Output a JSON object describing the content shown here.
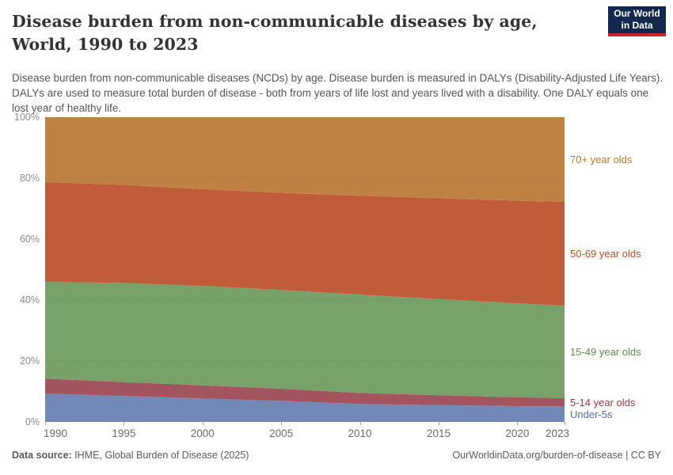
{
  "header": {
    "title": "Disease burden from non-communicable diseases by age, World, 1990 to 2023",
    "subtitle": "Disease burden from non-communicable diseases (NCDs) by age. Disease burden is measured in DALYs (Disability-Adjusted Life Years). DALYs are used to measure total burden of disease - both from years of life lost and years lived with a disability. One DALY equals one lost year of healthy life.",
    "logo": {
      "line1": "Our World",
      "line2": "in Data",
      "bg_color": "#12294d",
      "accent_color": "#cc2128"
    }
  },
  "chart_data": {
    "type": "area",
    "stacking": "percent",
    "title": "Disease burden from non-communicable diseases by age",
    "entity": "World",
    "x": [
      1990,
      1995,
      2000,
      2005,
      2010,
      2015,
      2020,
      2023
    ],
    "xlim": [
      1990,
      2023
    ],
    "ylim": [
      0,
      100
    ],
    "grid": "dashed-horizontal",
    "legend_position": "right-edge-labels",
    "yticks": [
      0,
      20,
      40,
      60,
      80,
      100
    ],
    "ytick_labels": [
      "0%",
      "20%",
      "40%",
      "60%",
      "80%",
      "100%"
    ],
    "xtick_labels": [
      "1990",
      "1995",
      "2000",
      "2005",
      "2010",
      "2015",
      "2020",
      "2023"
    ],
    "series": [
      {
        "name": "Under-5s",
        "color": "#7289b7",
        "label_color": "#4c6fa8",
        "values": [
          9.3,
          8.5,
          7.7,
          6.9,
          5.9,
          5.5,
          5.2,
          5.1
        ]
      },
      {
        "name": "5-14 year olds",
        "color": "#a2555e",
        "label_color": "#9c3a44",
        "values": [
          4.9,
          4.6,
          4.3,
          4.0,
          3.6,
          3.3,
          2.9,
          2.7
        ]
      },
      {
        "name": "15-49 year olds",
        "color": "#79a16a",
        "label_color": "#5d8a4c",
        "values": [
          31.8,
          32.5,
          32.6,
          32.4,
          32.3,
          31.5,
          30.8,
          30.4
        ]
      },
      {
        "name": "50-69 year olds",
        "color": "#c05c3a",
        "label_color": "#c24e27",
        "values": [
          32.7,
          32.2,
          31.8,
          31.9,
          32.4,
          33.1,
          33.7,
          34.0
        ]
      },
      {
        "name": "70+ year olds",
        "color": "#c08242",
        "label_color": "#b5772f",
        "values": [
          21.3,
          22.2,
          23.6,
          24.8,
          25.8,
          26.6,
          27.4,
          27.8
        ]
      }
    ]
  },
  "footer": {
    "source_label": "Data source:",
    "source_value": " IHME, Global Burden of Disease (2025)",
    "credit": "OurWorldinData.org/burden-of-disease | CC BY"
  }
}
